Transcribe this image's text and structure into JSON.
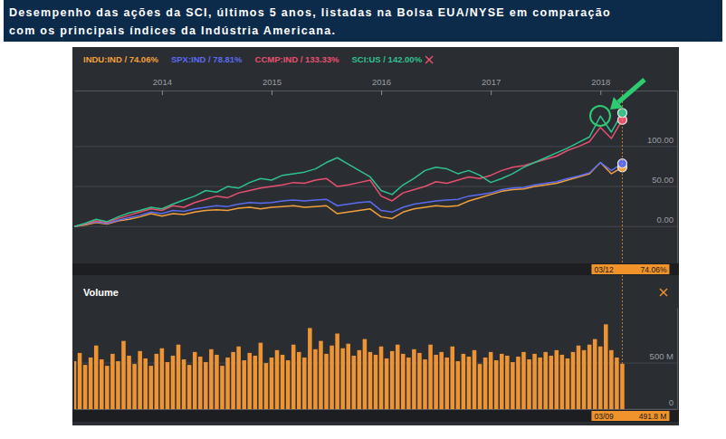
{
  "chart_data": [
    {
      "type": "line",
      "title": "Desempenho das ações da SCI, últimos 5 anos, listadas na Bolsa EUA/NYSE em comparação\ncom os principais índices da Indústria Americana.",
      "x": [
        2013.2,
        2013.3,
        2013.4,
        2013.5,
        2013.6,
        2013.7,
        2013.8,
        2013.9,
        2014,
        2014.1,
        2014.2,
        2014.3,
        2014.4,
        2014.5,
        2014.6,
        2014.7,
        2014.8,
        2014.9,
        2015,
        2015.1,
        2015.2,
        2015.3,
        2015.4,
        2015.5,
        2015.6,
        2015.7,
        2015.8,
        2015.9,
        2016,
        2016.1,
        2016.2,
        2016.3,
        2016.4,
        2016.5,
        2016.6,
        2016.7,
        2016.8,
        2016.9,
        2017,
        2017.1,
        2017.2,
        2017.3,
        2017.4,
        2017.5,
        2017.6,
        2017.7,
        2017.8,
        2017.9,
        2018,
        2018.1,
        2018.2
      ],
      "xlim": [
        2013.2,
        2018.7
      ],
      "xticks": [
        2014,
        2015,
        2016,
        2017,
        2018
      ],
      "ylim": [
        -45,
        170
      ],
      "yticks": [
        {
          "value": 0,
          "label": "0.00"
        },
        {
          "value": 50,
          "label": "50.00"
        },
        {
          "value": 100,
          "label": "100.00"
        }
      ],
      "grid": true,
      "legend": "top-left",
      "marker": "last",
      "series": [
        {
          "name": "INDU:IND / 74.06%",
          "color": "#f2a03d",
          "values": [
            0,
            2,
            5,
            3,
            7,
            9,
            12,
            16,
            13,
            16,
            15,
            18,
            20,
            21,
            20,
            23,
            24,
            22,
            24,
            25,
            26,
            24,
            25,
            26,
            16,
            18,
            20,
            22,
            12,
            10,
            18,
            22,
            24,
            26,
            25,
            26,
            32,
            36,
            40,
            44,
            46,
            47,
            50,
            52,
            54,
            58,
            62,
            66,
            80,
            66,
            74.06
          ]
        },
        {
          "name": "SPX:IND / 78.81%",
          "color": "#5b6cf0",
          "values": [
            0,
            3,
            6,
            4,
            8,
            11,
            14,
            18,
            16,
            20,
            19,
            22,
            24,
            26,
            25,
            28,
            30,
            29,
            30,
            32,
            33,
            32,
            33,
            34,
            26,
            28,
            30,
            31,
            20,
            18,
            24,
            28,
            30,
            32,
            33,
            34,
            38,
            40,
            42,
            46,
            48,
            49,
            52,
            54,
            56,
            60,
            63,
            67,
            80,
            70,
            78.81
          ]
        },
        {
          "name": "CCMP:IND / 133.33%",
          "color": "#e8506f",
          "values": [
            0,
            3,
            7,
            5,
            10,
            14,
            18,
            22,
            20,
            26,
            24,
            30,
            34,
            38,
            36,
            42,
            45,
            48,
            50,
            52,
            55,
            54,
            58,
            60,
            50,
            52,
            55,
            58,
            38,
            32,
            42,
            46,
            50,
            56,
            54,
            58,
            62,
            60,
            64,
            70,
            74,
            76,
            80,
            84,
            88,
            95,
            100,
            106,
            124,
            110,
            133.33
          ]
        },
        {
          "name": "SCI:US / 142.00%",
          "color": "#2fc28f",
          "values": [
            0,
            4,
            9,
            6,
            12,
            17,
            20,
            24,
            22,
            28,
            33,
            38,
            45,
            43,
            50,
            48,
            55,
            60,
            58,
            64,
            66,
            68,
            72,
            80,
            86,
            78,
            70,
            62,
            45,
            40,
            52,
            60,
            70,
            74,
            72,
            66,
            70,
            64,
            55,
            60,
            66,
            74,
            80,
            86,
            92,
            98,
            105,
            112,
            138,
            118,
            142
          ]
        }
      ],
      "annotations": [
        "03/12",
        "74.06%"
      ]
    },
    {
      "type": "bar",
      "title": "Volume",
      "x": [
        2013.2,
        2013.25,
        2013.3,
        2013.35,
        2013.4,
        2013.45,
        2013.5,
        2013.55,
        2013.6,
        2013.65,
        2013.7,
        2013.75,
        2013.8,
        2013.85,
        2013.9,
        2013.95,
        2014,
        2014.05,
        2014.1,
        2014.15,
        2014.2,
        2014.25,
        2014.3,
        2014.35,
        2014.4,
        2014.45,
        2014.5,
        2014.55,
        2014.6,
        2014.65,
        2014.7,
        2014.75,
        2014.8,
        2014.85,
        2014.9,
        2014.95,
        2015,
        2015.05,
        2015.1,
        2015.15,
        2015.2,
        2015.25,
        2015.3,
        2015.35,
        2015.4,
        2015.45,
        2015.5,
        2015.55,
        2015.6,
        2015.65,
        2015.7,
        2015.75,
        2015.8,
        2015.85,
        2015.9,
        2015.95,
        2016,
        2016.05,
        2016.1,
        2016.15,
        2016.2,
        2016.25,
        2016.3,
        2016.35,
        2016.4,
        2016.45,
        2016.5,
        2016.55,
        2016.6,
        2016.65,
        2016.7,
        2016.75,
        2016.8,
        2016.85,
        2016.9,
        2016.95,
        2017,
        2017.05,
        2017.1,
        2017.15,
        2017.2,
        2017.25,
        2017.3,
        2017.35,
        2017.4,
        2017.45,
        2017.5,
        2017.55,
        2017.6,
        2017.65,
        2017.7,
        2017.75,
        2017.8,
        2017.85,
        2017.9,
        2017.95,
        2018,
        2018.05,
        2018.1,
        2018.15,
        2018.2
      ],
      "values": [
        520,
        610,
        480,
        560,
        690,
        540,
        470,
        600,
        520,
        740,
        580,
        490,
        630,
        550,
        470,
        600,
        660,
        510,
        580,
        700,
        540,
        480,
        620,
        570,
        510,
        650,
        590,
        470,
        560,
        620,
        680,
        530,
        610,
        580,
        720,
        500,
        560,
        640,
        590,
        530,
        700,
        620,
        560,
        880,
        650,
        740,
        600,
        690,
        820,
        660,
        710,
        580,
        640,
        760,
        620,
        590,
        680,
        550,
        630,
        700,
        600,
        560,
        650,
        610,
        540,
        700,
        590,
        620,
        560,
        680,
        520,
        600,
        570,
        640,
        490,
        560,
        620,
        530,
        600,
        580,
        510,
        570,
        620,
        540,
        600,
        560,
        620,
        580,
        640,
        590,
        550,
        620,
        690,
        640,
        700,
        760,
        680,
        920,
        640,
        560,
        491.8
      ],
      "color": "#ee9433",
      "xlim": [
        2013.2,
        2018.7
      ],
      "ylim": [
        0,
        1100
      ],
      "yticks": [
        0,
        {
          "value": 500,
          "label": "500 M"
        }
      ],
      "grid": true,
      "tick_labels": "y",
      "annotations": [
        "03/09",
        "491.8 M"
      ]
    }
  ]
}
